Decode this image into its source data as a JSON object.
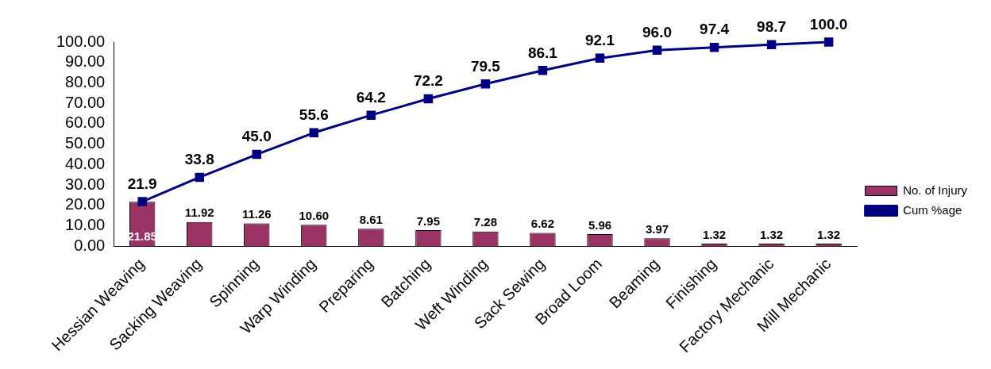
{
  "chart_data": {
    "type": "bar",
    "categories": [
      "Hessian Weaving",
      "Sacking Weaving",
      "Spinning",
      "Warp Winding",
      "Preparing",
      "Batching",
      "Weft Winding",
      "Sack Sewing",
      "Broad Loom",
      "Beaming",
      "Finishing",
      "Factory Mechanic",
      "Mill Mechanic"
    ],
    "series": [
      {
        "name": "No. of Injury",
        "color": "#993366",
        "values": [
          21.85,
          11.92,
          11.26,
          10.6,
          8.61,
          7.95,
          7.28,
          6.62,
          5.96,
          3.97,
          1.32,
          1.32,
          1.32
        ],
        "value_labels": [
          "21.85",
          "11.92",
          "11.26",
          "10.60",
          "8.61",
          "7.95",
          "7.28",
          "6.62",
          "5.96",
          "3.97",
          "1.32",
          "1.32",
          "1.32"
        ]
      },
      {
        "name": "Cum %age",
        "type": "line",
        "color": "#000080",
        "marker": "square",
        "values": [
          21.9,
          33.8,
          45.0,
          55.6,
          64.2,
          72.2,
          79.5,
          86.1,
          92.1,
          96.0,
          97.4,
          98.7,
          100.0
        ],
        "value_labels": [
          "21.9",
          "33.8",
          "45.0",
          "55.6",
          "64.2",
          "72.2",
          "79.5",
          "86.1",
          "92.1",
          "96.0",
          "97.4",
          "98.7",
          "100.0"
        ]
      }
    ],
    "ylim": [
      0,
      100
    ],
    "yticks": [
      {
        "value": 0,
        "label": "0.00"
      },
      {
        "value": 10,
        "label": "10.00"
      },
      {
        "value": 20,
        "label": "20.00"
      },
      {
        "value": 30,
        "label": "30.00"
      },
      {
        "value": 40,
        "label": "40.00"
      },
      {
        "value": 50,
        "label": "50.00"
      },
      {
        "value": 60,
        "label": "60.00"
      },
      {
        "value": 70,
        "label": "70.00"
      },
      {
        "value": 80,
        "label": "80.00"
      },
      {
        "value": 90,
        "label": "90.00"
      },
      {
        "value": 100,
        "label": "100.00"
      }
    ],
    "grid": false,
    "legend": "right"
  }
}
